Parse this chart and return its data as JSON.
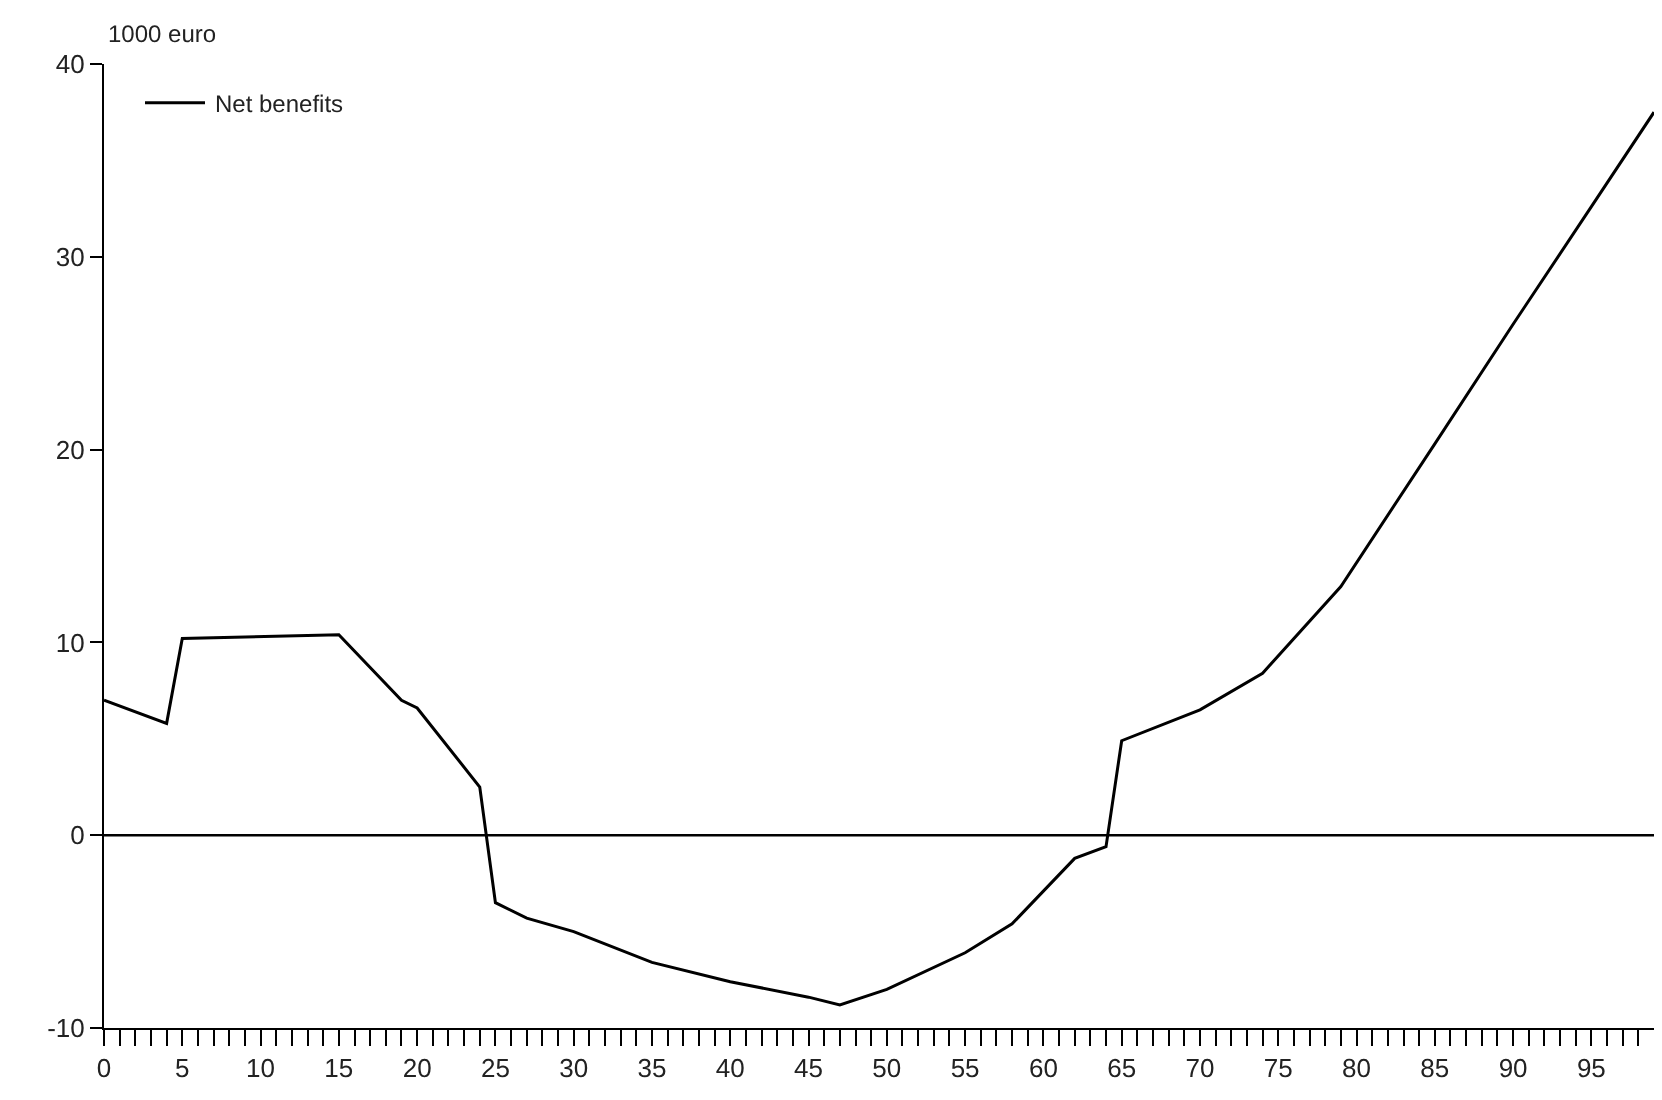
{
  "chart_data": {
    "type": "line",
    "ylabel": "1000 euro",
    "series": [
      {
        "name": "Net benefits",
        "color": "#000000",
        "x": [
          0,
          4,
          5,
          15,
          19,
          20,
          24,
          25,
          27,
          30,
          35,
          40,
          45,
          47,
          50,
          55,
          58,
          62,
          64,
          65,
          70,
          74,
          79,
          85,
          90,
          95,
          99
        ],
        "values": [
          7.0,
          5.8,
          10.2,
          10.4,
          7.0,
          6.6,
          2.5,
          -3.5,
          -4.3,
          -5.0,
          -6.6,
          -7.6,
          -8.4,
          -8.8,
          -8.0,
          -6.1,
          -4.6,
          -1.2,
          -0.6,
          4.9,
          6.5,
          8.4,
          12.9,
          20.3,
          26.5,
          32.6,
          37.5
        ]
      }
    ],
    "xlim": [
      0,
      99
    ],
    "ylim": [
      -10,
      40
    ],
    "xticks": [
      0,
      {
        "value": 1,
        "label": null
      },
      {
        "value": 2,
        "label": null
      },
      {
        "value": 3,
        "label": null
      },
      {
        "value": 4,
        "label": null
      },
      5,
      {
        "value": 6,
        "label": null
      },
      {
        "value": 7,
        "label": null
      },
      {
        "value": 8,
        "label": null
      },
      {
        "value": 9,
        "label": null
      },
      10,
      {
        "value": 11,
        "label": null
      },
      {
        "value": 12,
        "label": null
      },
      {
        "value": 13,
        "label": null
      },
      {
        "value": 14,
        "label": null
      },
      15,
      {
        "value": 16,
        "label": null
      },
      {
        "value": 17,
        "label": null
      },
      {
        "value": 18,
        "label": null
      },
      {
        "value": 19,
        "label": null
      },
      20,
      {
        "value": 21,
        "label": null
      },
      {
        "value": 22,
        "label": null
      },
      {
        "value": 23,
        "label": null
      },
      {
        "value": 24,
        "label": null
      },
      25,
      {
        "value": 26,
        "label": null
      },
      {
        "value": 27,
        "label": null
      },
      {
        "value": 28,
        "label": null
      },
      {
        "value": 29,
        "label": null
      },
      30,
      {
        "value": 31,
        "label": null
      },
      {
        "value": 32,
        "label": null
      },
      {
        "value": 33,
        "label": null
      },
      {
        "value": 34,
        "label": null
      },
      35,
      {
        "value": 36,
        "label": null
      },
      {
        "value": 37,
        "label": null
      },
      {
        "value": 38,
        "label": null
      },
      {
        "value": 39,
        "label": null
      },
      40,
      {
        "value": 41,
        "label": null
      },
      {
        "value": 42,
        "label": null
      },
      {
        "value": 43,
        "label": null
      },
      {
        "value": 44,
        "label": null
      },
      45,
      {
        "value": 46,
        "label": null
      },
      {
        "value": 47,
        "label": null
      },
      {
        "value": 48,
        "label": null
      },
      {
        "value": 49,
        "label": null
      },
      50,
      {
        "value": 51,
        "label": null
      },
      {
        "value": 52,
        "label": null
      },
      {
        "value": 53,
        "label": null
      },
      {
        "value": 54,
        "label": null
      },
      55,
      {
        "value": 56,
        "label": null
      },
      {
        "value": 57,
        "label": null
      },
      {
        "value": 58,
        "label": null
      },
      {
        "value": 59,
        "label": null
      },
      60,
      {
        "value": 61,
        "label": null
      },
      {
        "value": 62,
        "label": null
      },
      {
        "value": 63,
        "label": null
      },
      {
        "value": 64,
        "label": null
      },
      65,
      {
        "value": 66,
        "label": null
      },
      {
        "value": 67,
        "label": null
      },
      {
        "value": 68,
        "label": null
      },
      {
        "value": 69,
        "label": null
      },
      70,
      {
        "value": 71,
        "label": null
      },
      {
        "value": 72,
        "label": null
      },
      {
        "value": 73,
        "label": null
      },
      {
        "value": 74,
        "label": null
      },
      75,
      {
        "value": 76,
        "label": null
      },
      {
        "value": 77,
        "label": null
      },
      {
        "value": 78,
        "label": null
      },
      {
        "value": 79,
        "label": null
      },
      80,
      {
        "value": 81,
        "label": null
      },
      {
        "value": 82,
        "label": null
      },
      {
        "value": 83,
        "label": null
      },
      {
        "value": 84,
        "label": null
      },
      85,
      {
        "value": 86,
        "label": null
      },
      {
        "value": 87,
        "label": null
      },
      {
        "value": 88,
        "label": null
      },
      {
        "value": 89,
        "label": null
      },
      90,
      {
        "value": 91,
        "label": null
      },
      {
        "value": 92,
        "label": null
      },
      {
        "value": 93,
        "label": null
      },
      {
        "value": 94,
        "label": null
      },
      95,
      {
        "value": 96,
        "label": null
      },
      {
        "value": 97,
        "label": null
      },
      {
        "value": 98,
        "label": null
      }
    ],
    "yticks": [
      -10,
      0,
      10,
      20,
      30,
      40
    ],
    "ref_lines": [
      {
        "axis": "y",
        "value": 0,
        "color": "#000000"
      }
    ],
    "legend": "top left",
    "grid": false,
    "marker": "none",
    "line_style": "solid"
  }
}
